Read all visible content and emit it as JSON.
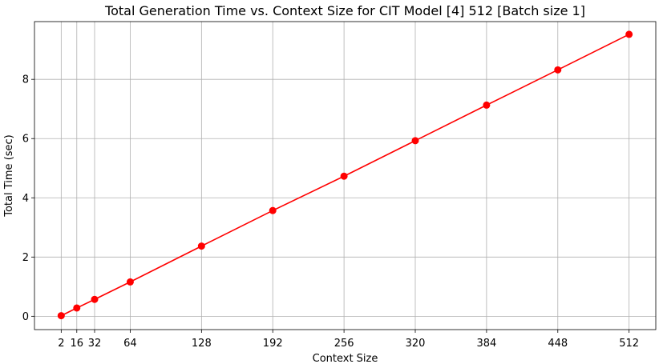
{
  "chart_data": {
    "type": "line",
    "title": "Total Generation Time vs. Context Size for CIT Model [4] 512 [Batch size 1]",
    "xlabel": "Context Size",
    "ylabel": "Total Time (sec)",
    "x": [
      2,
      16,
      32,
      64,
      128,
      192,
      256,
      320,
      384,
      448,
      512
    ],
    "xticks": [
      "2",
      "16",
      "32",
      "64",
      "128",
      "192",
      "256",
      "320",
      "384",
      "448",
      "512"
    ],
    "yticks": [
      "0",
      "2",
      "4",
      "6",
      "8"
    ],
    "xlim": [
      -22,
      536
    ],
    "ylim": [
      -0.45,
      9.95
    ],
    "grid": true,
    "series": [
      {
        "color": "#ff0000",
        "marker": "circle",
        "values": [
          0.02,
          0.28,
          0.57,
          1.16,
          2.37,
          3.57,
          4.73,
          5.93,
          7.13,
          8.32,
          9.52
        ]
      }
    ]
  }
}
